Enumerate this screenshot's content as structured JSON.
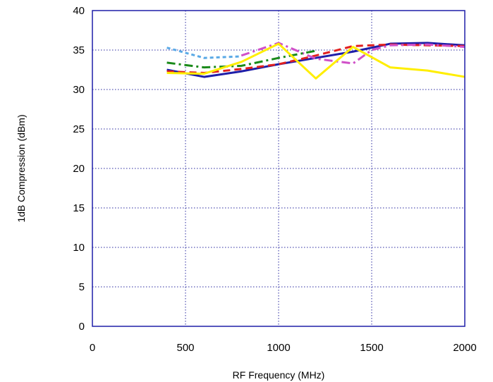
{
  "chart_data": {
    "type": "line",
    "title": "",
    "xlabel": "RF Frequency (MHz)",
    "ylabel": "1dB Compression (dBm)",
    "xlim": [
      0,
      2000
    ],
    "ylim": [
      0,
      40
    ],
    "xticks": [
      0,
      500,
      1000,
      1500,
      2000
    ],
    "yticks": [
      0,
      5,
      10,
      15,
      20,
      25,
      30,
      35,
      40
    ],
    "grid": true,
    "legend": "none",
    "series": [
      {
        "color": "#1e1ea8",
        "dash": "solid",
        "points": [
          [
            400,
            32.5
          ],
          [
            600,
            31.6
          ],
          [
            800,
            32.3
          ],
          [
            1000,
            33.2
          ],
          [
            1200,
            34.0
          ],
          [
            1400,
            34.8
          ],
          [
            1600,
            35.8
          ],
          [
            1800,
            35.9
          ],
          [
            2000,
            35.6
          ]
        ]
      },
      {
        "color": "#e02020",
        "dash": "dashed",
        "points": [
          [
            400,
            32.3
          ],
          [
            600,
            32.1
          ],
          [
            800,
            32.6
          ],
          [
            1000,
            33.2
          ],
          [
            1200,
            34.3
          ],
          [
            1400,
            35.5
          ],
          [
            1600,
            35.7
          ],
          [
            1800,
            35.6
          ],
          [
            2000,
            35.5
          ]
        ]
      },
      {
        "color": "#5aa9e6",
        "dash": "dotted",
        "points": [
          [
            400,
            35.3
          ],
          [
            600,
            34.0
          ],
          [
            800,
            34.2
          ]
        ]
      },
      {
        "color": "#d050c8",
        "dash": "dashdot",
        "points": [
          [
            800,
            34.3
          ],
          [
            1000,
            35.9
          ],
          [
            1200,
            33.9
          ],
          [
            1400,
            33.3
          ],
          [
            1500,
            35.0
          ],
          [
            1600,
            35.6
          ],
          [
            1800,
            35.7
          ],
          [
            2000,
            35.4
          ]
        ]
      },
      {
        "color": "#1a8a1a",
        "dash": "dashdot",
        "points": [
          [
            400,
            33.4
          ],
          [
            600,
            32.8
          ],
          [
            800,
            33.0
          ],
          [
            1000,
            34.0
          ],
          [
            1200,
            34.9
          ]
        ]
      },
      {
        "color": "#ffee00",
        "dash": "solid",
        "points": [
          [
            400,
            32.1
          ],
          [
            600,
            32.0
          ],
          [
            800,
            33.5
          ],
          [
            1000,
            35.8
          ],
          [
            1200,
            31.4
          ],
          [
            1400,
            35.4
          ],
          [
            1600,
            32.8
          ],
          [
            1800,
            32.4
          ],
          [
            2000,
            31.6
          ]
        ]
      }
    ]
  }
}
